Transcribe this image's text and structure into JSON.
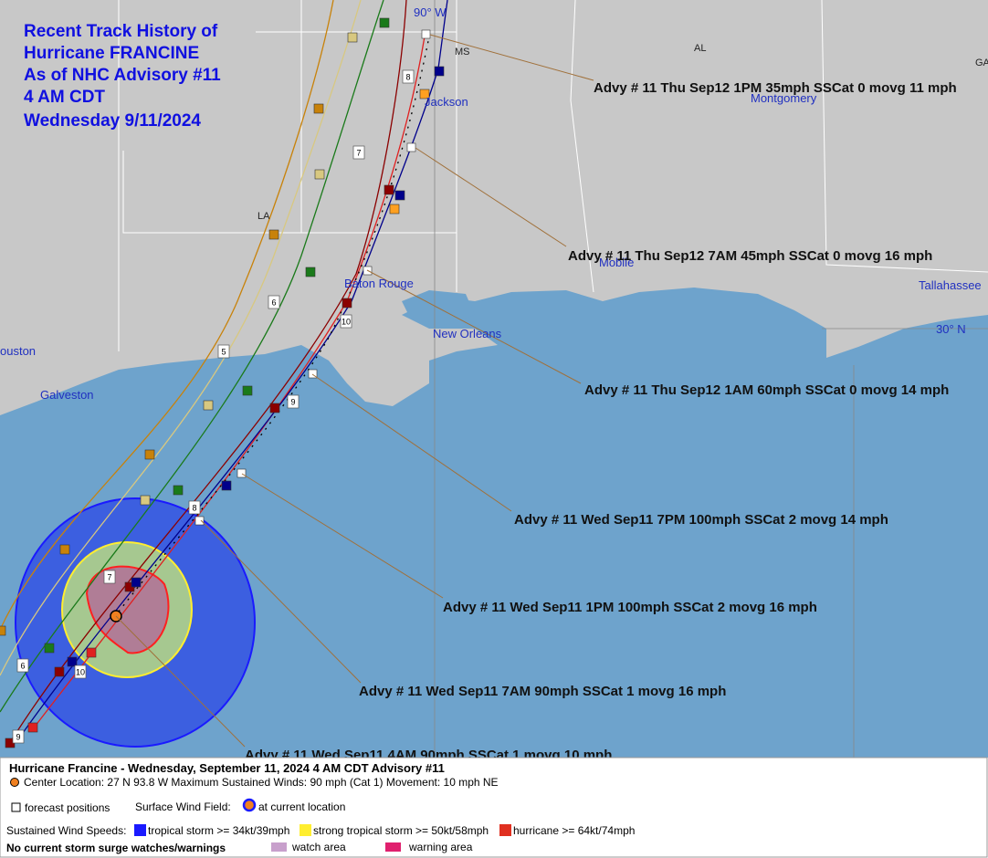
{
  "title": [
    "Recent Track History of",
    "Hurricane FRANCINE",
    "As of NHC Advisory #11",
    "4 AM CDT",
    "Wednesday 9/11/2024"
  ],
  "map_labels": {
    "lon": "90° W",
    "lat": "30° N",
    "ms": "MS",
    "al": "AL",
    "ga": "GA",
    "la": "LA",
    "jackson": "Jackson",
    "montgomery": "Montgomery",
    "mobile": "Mobile",
    "tallahassee": "Tallahassee",
    "baton_rouge": "Baton Rouge",
    "new_orleans": "New Orleans",
    "houston": "ouston",
    "galveston": "Galveston"
  },
  "advisories": [
    "Advy # 11 Thu Sep12 1PM  35mph SSCat 0 movg 11 mph",
    "Advy # 11 Thu Sep12 7AM  45mph SSCat 0 movg 16 mph",
    "Advy # 11 Thu Sep12 1AM  60mph SSCat 0 movg 14 mph",
    "Advy # 11 Wed Sep11 7PM  100mph SSCat 2 movg 14 mph",
    "Advy # 11 Wed Sep11 1PM  100mph SSCat 2 movg 16 mph",
    "Advy # 11 Wed Sep11 7AM  90mph SSCat 1 movg 16 mph",
    "Advy # 11 Wed Sep11 4AM  90mph SSCat 1 movg 10 mph"
  ],
  "track_labels": [
    "5",
    "6",
    "7",
    "8",
    "9",
    "10",
    "8",
    "7",
    "6",
    "10",
    "9"
  ],
  "legend": {
    "heading": "Hurricane Francine  -  Wednesday, September 11, 2024  4 AM CDT   Advisory #11",
    "center": "Center Location: 27 N  93.8 W   Maximum Sustained Winds: 90 mph (Cat 1) Movement: 10 mph NE",
    "forecast": "forecast positions",
    "wind_field": "Surface Wind Field:",
    "current": "at current location",
    "speeds": "Sustained Wind Speeds:",
    "ts": "tropical storm >= 34kt/39mph",
    "sts": "strong tropical storm >= 50kt/58mph",
    "hu": "hurricane >= 64kt/74mph",
    "surge": "No current storm surge watches/warnings",
    "watch": "watch area",
    "warning": "warning area"
  }
}
